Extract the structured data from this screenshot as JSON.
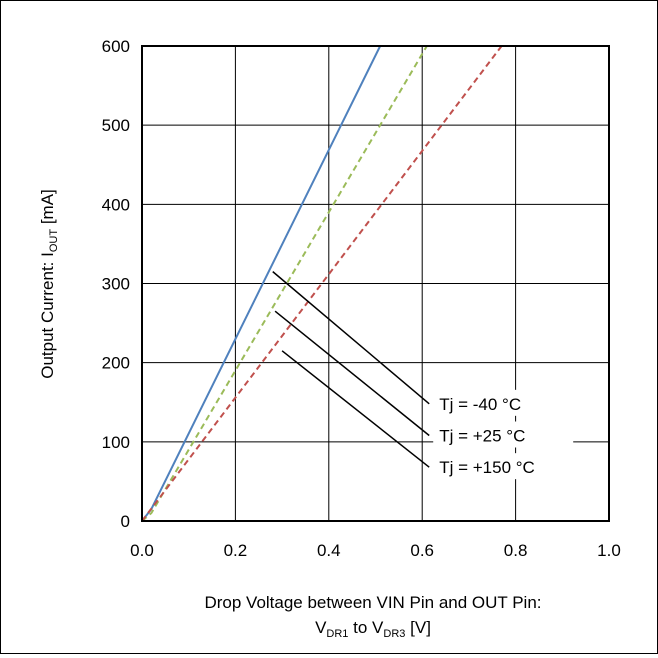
{
  "chart_data": {
    "type": "line",
    "title": "",
    "xlabel": {
      "main": "Drop Voltage between VIN Pin and OUT Pin:",
      "line2_v": "V",
      "line2_sub1": "DR1",
      "line2_to": " to V",
      "line2_sub2": "DR3",
      "line2_unit": " [V]"
    },
    "ylabel": {
      "main": "Output Current: I",
      "sub": "OUT",
      "unit": " [mA]"
    },
    "xlim": [
      0,
      1.0
    ],
    "ylim": [
      0,
      600
    ],
    "x_ticks": [
      "0.0",
      "0.2",
      "0.4",
      "0.6",
      "0.8",
      "1.0"
    ],
    "y_ticks": [
      "0",
      "100",
      "200",
      "300",
      "400",
      "500",
      "600"
    ],
    "grid": true,
    "series": [
      {
        "name": "Tj = -40 °C",
        "color": "#4f81bd",
        "dash": "solid",
        "points": [
          [
            0.0,
            0
          ],
          [
            0.02,
            15
          ],
          [
            0.51,
            600
          ]
        ],
        "callout_from": [
          0.28,
          315
        ],
        "callout_to": [
          0.615,
          148
        ]
      },
      {
        "name": "Tj = +25 °C",
        "color": "#9bbb59",
        "dash": "dashed",
        "points": [
          [
            0.0,
            0
          ],
          [
            0.02,
            10
          ],
          [
            0.61,
            600
          ]
        ],
        "callout_from": [
          0.285,
          265
        ],
        "callout_to": [
          0.615,
          108
        ]
      },
      {
        "name": "Tj = +150 °C",
        "color": "#c0504d",
        "dash": "dashed",
        "points": [
          [
            0.0,
            0
          ],
          [
            0.77,
            600
          ]
        ],
        "callout_from": [
          0.3,
          215
        ],
        "callout_to": [
          0.615,
          68
        ]
      }
    ]
  }
}
